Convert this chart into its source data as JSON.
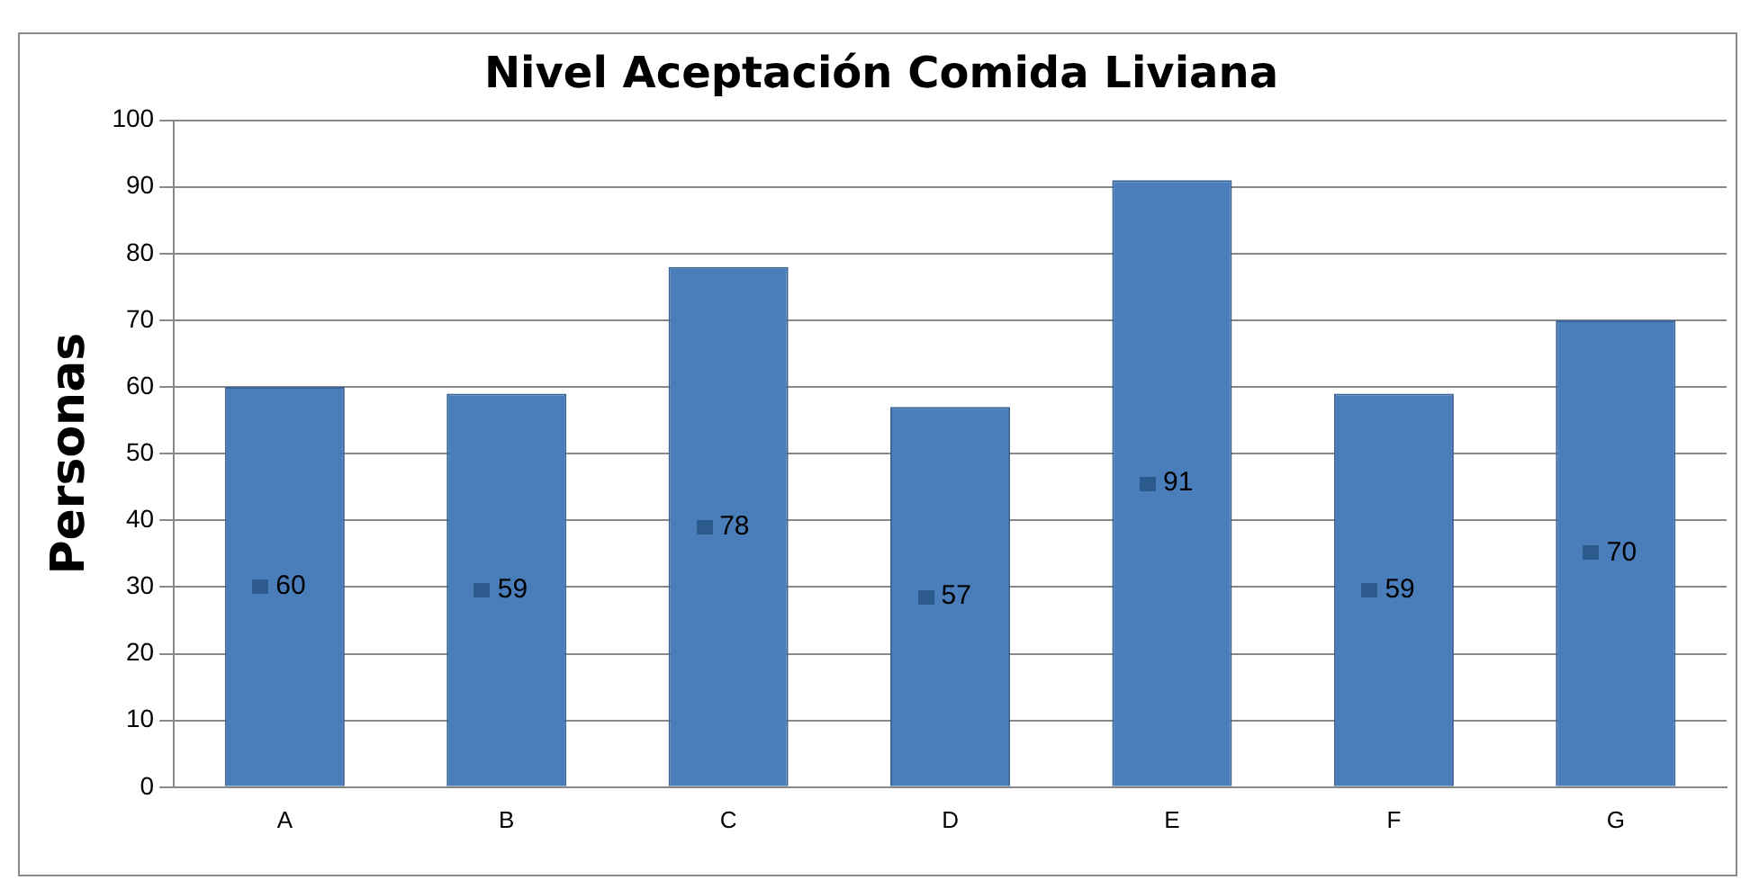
{
  "chart_data": {
    "type": "bar",
    "title": "Nivel Aceptación Comida Liviana",
    "ylabel": "Personas",
    "categories": [
      "A",
      "B",
      "C",
      "D",
      "E",
      "F",
      "G"
    ],
    "values": [
      60,
      59,
      78,
      57,
      91,
      59,
      70
    ],
    "color": "#4a7ebb",
    "ylim": [
      0,
      100
    ],
    "yticks": [
      0,
      10,
      20,
      30,
      40,
      50,
      60,
      70,
      80,
      90,
      100
    ],
    "grid": "y",
    "data_labels": true,
    "legend": false
  }
}
